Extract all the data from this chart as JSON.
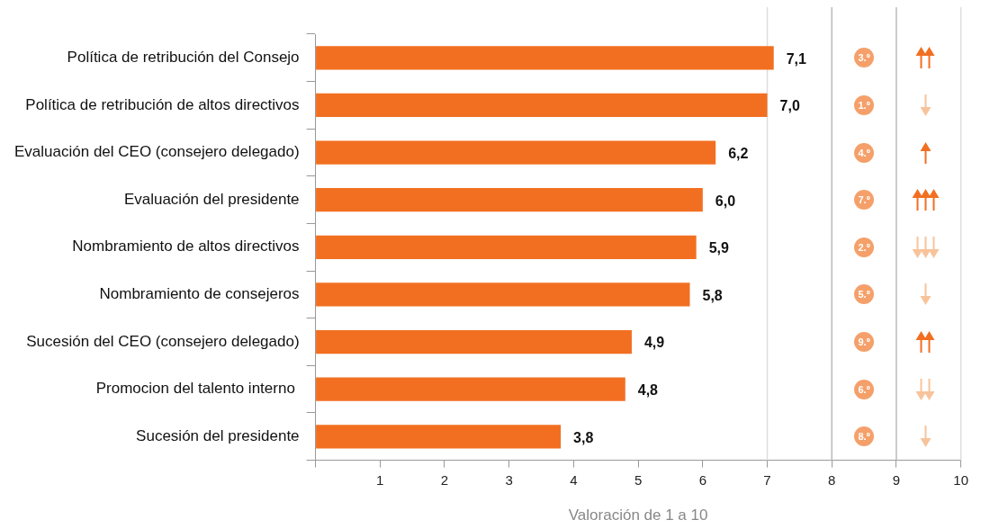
{
  "chart_data": {
    "type": "bar",
    "orientation": "horizontal",
    "xlabel": "Valoración de 1 a 10",
    "categories": [
      "Política de retribución del Consejo",
      "Política de retribución de altos directivos",
      "Evaluación del CEO (consejero delegado)",
      "Evaluación del presidente",
      "Nombramiento de altos directivos",
      "Nombramiento de consejeros",
      "Sucesión del CEO (consejero delegado)",
      "Promocion del talento interno ",
      "Sucesión del presidente"
    ],
    "values": [
      7.1,
      7.0,
      6.2,
      6.0,
      5.9,
      5.8,
      4.9,
      4.8,
      3.8
    ],
    "value_labels": [
      "7,1",
      "7,0",
      "6,2",
      "6,0",
      "5,9",
      "5,8",
      "4,9",
      "4,8",
      "3,8"
    ],
    "color": "#f26f21",
    "xlim": [
      0,
      10
    ],
    "xticks": [
      {
        "value": 0,
        "label": null
      },
      1,
      2,
      3,
      4,
      5,
      6,
      7,
      8,
      9,
      10
    ],
    "grid": false,
    "legend": false,
    "ref_lines": [
      {
        "axis": "x",
        "value": 7,
        "color": "#dddddd"
      },
      {
        "axis": "x",
        "value": 8,
        "color": "#bbbbbb"
      },
      {
        "axis": "x",
        "value": 9,
        "color": "#bbbbbb"
      },
      {
        "axis": "x",
        "value": 10,
        "color": "#dddddd"
      }
    ],
    "annotations": [
      "3.º",
      "1.º",
      "4.º",
      "7.º",
      "2.º",
      "5.º",
      "9.º",
      "6.º",
      "8.º"
    ]
  }
}
